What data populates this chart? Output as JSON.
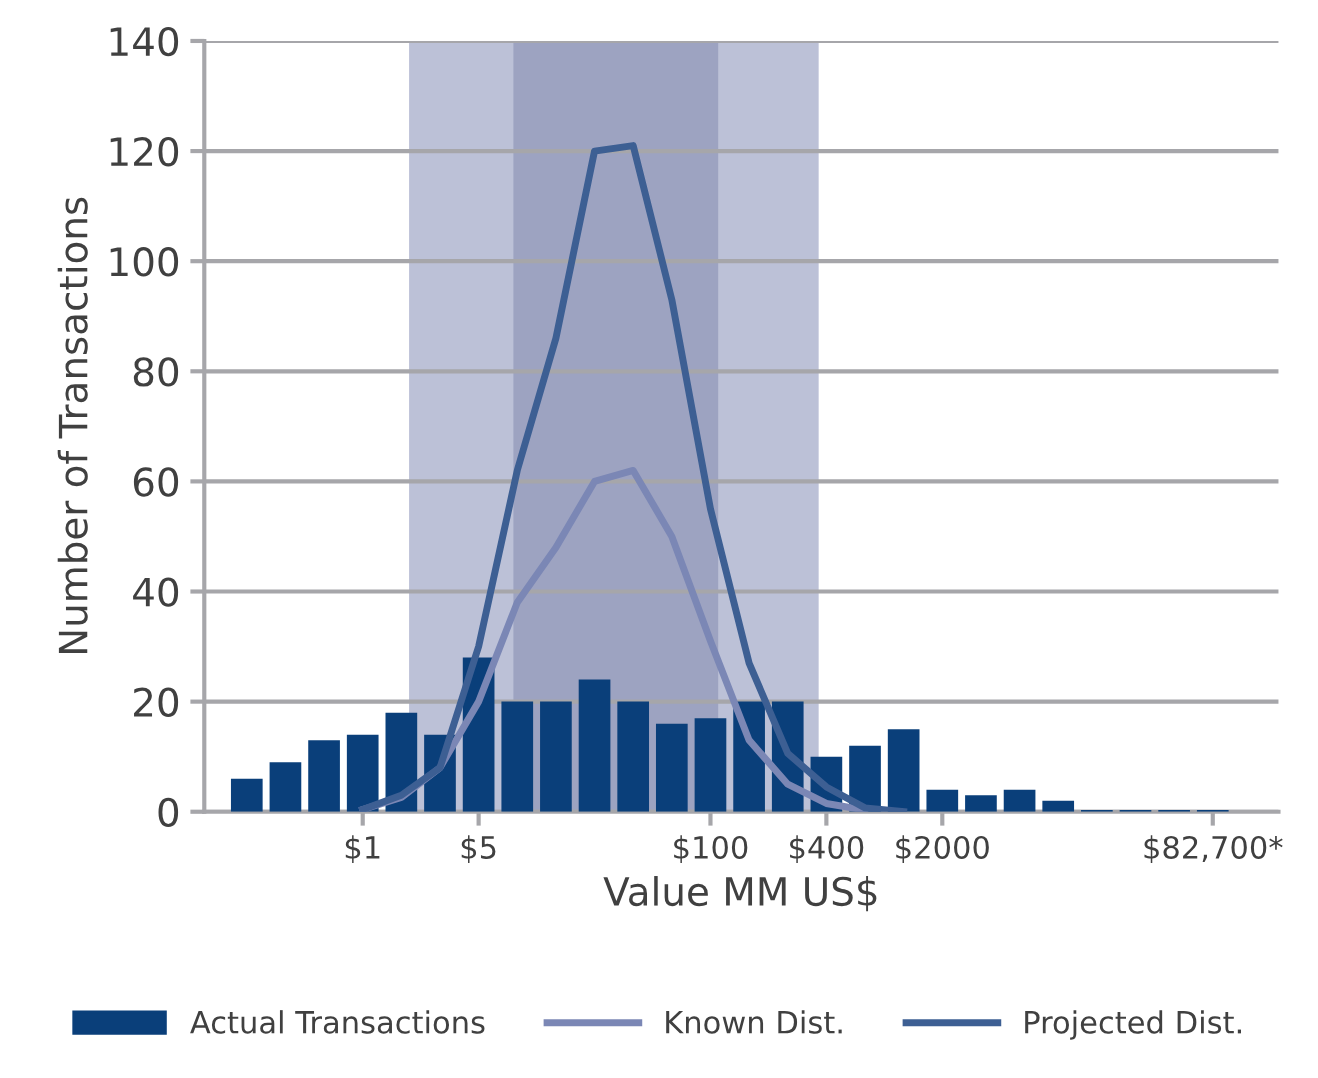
{
  "chart_data": {
    "type": "bar",
    "xlabel": "Value MM US$",
    "ylabel": "Number of Transactions",
    "categories": [
      null,
      null,
      null,
      "$1",
      null,
      null,
      "$5",
      null,
      null,
      null,
      null,
      null,
      "$100",
      null,
      null,
      "$400",
      null,
      null,
      "$2000",
      null,
      null,
      null,
      null,
      null,
      null,
      "$82,700*"
    ],
    "series": [
      {
        "name": "Actual Transactions",
        "color": "#0a3f7a",
        "values": [
          6,
          9,
          13,
          14,
          18,
          14,
          28,
          20,
          20,
          24,
          20,
          16,
          17,
          20,
          20,
          10,
          12,
          15,
          4,
          3,
          4,
          2,
          0.3,
          0.3,
          0.3,
          0.3
        ]
      },
      {
        "name": "Known Dist.",
        "type": "line",
        "color": "#7b87b5",
        "values": [
          null,
          null,
          null,
          0.4,
          2.6,
          8,
          20,
          38,
          48,
          60,
          62,
          50,
          31,
          13,
          5,
          1.5,
          0.3,
          null,
          null,
          null,
          null,
          null,
          null,
          null,
          null,
          null
        ]
      },
      {
        "name": "Projected Dist.",
        "type": "line",
        "color": "#3d5f93",
        "values": [
          null,
          null,
          null,
          0.4,
          3,
          8,
          30,
          62,
          86,
          120,
          121,
          93,
          55,
          27,
          10.6,
          4.5,
          0.7,
          0,
          null,
          null,
          null,
          null,
          null,
          null,
          null,
          null
        ]
      }
    ],
    "ylim": [
      0,
      140
    ],
    "yticks": [
      0,
      20,
      40,
      60,
      80,
      100,
      120,
      140
    ],
    "grid": "y",
    "legend": "bottom",
    "line_style": "solid",
    "marker": "none"
  }
}
